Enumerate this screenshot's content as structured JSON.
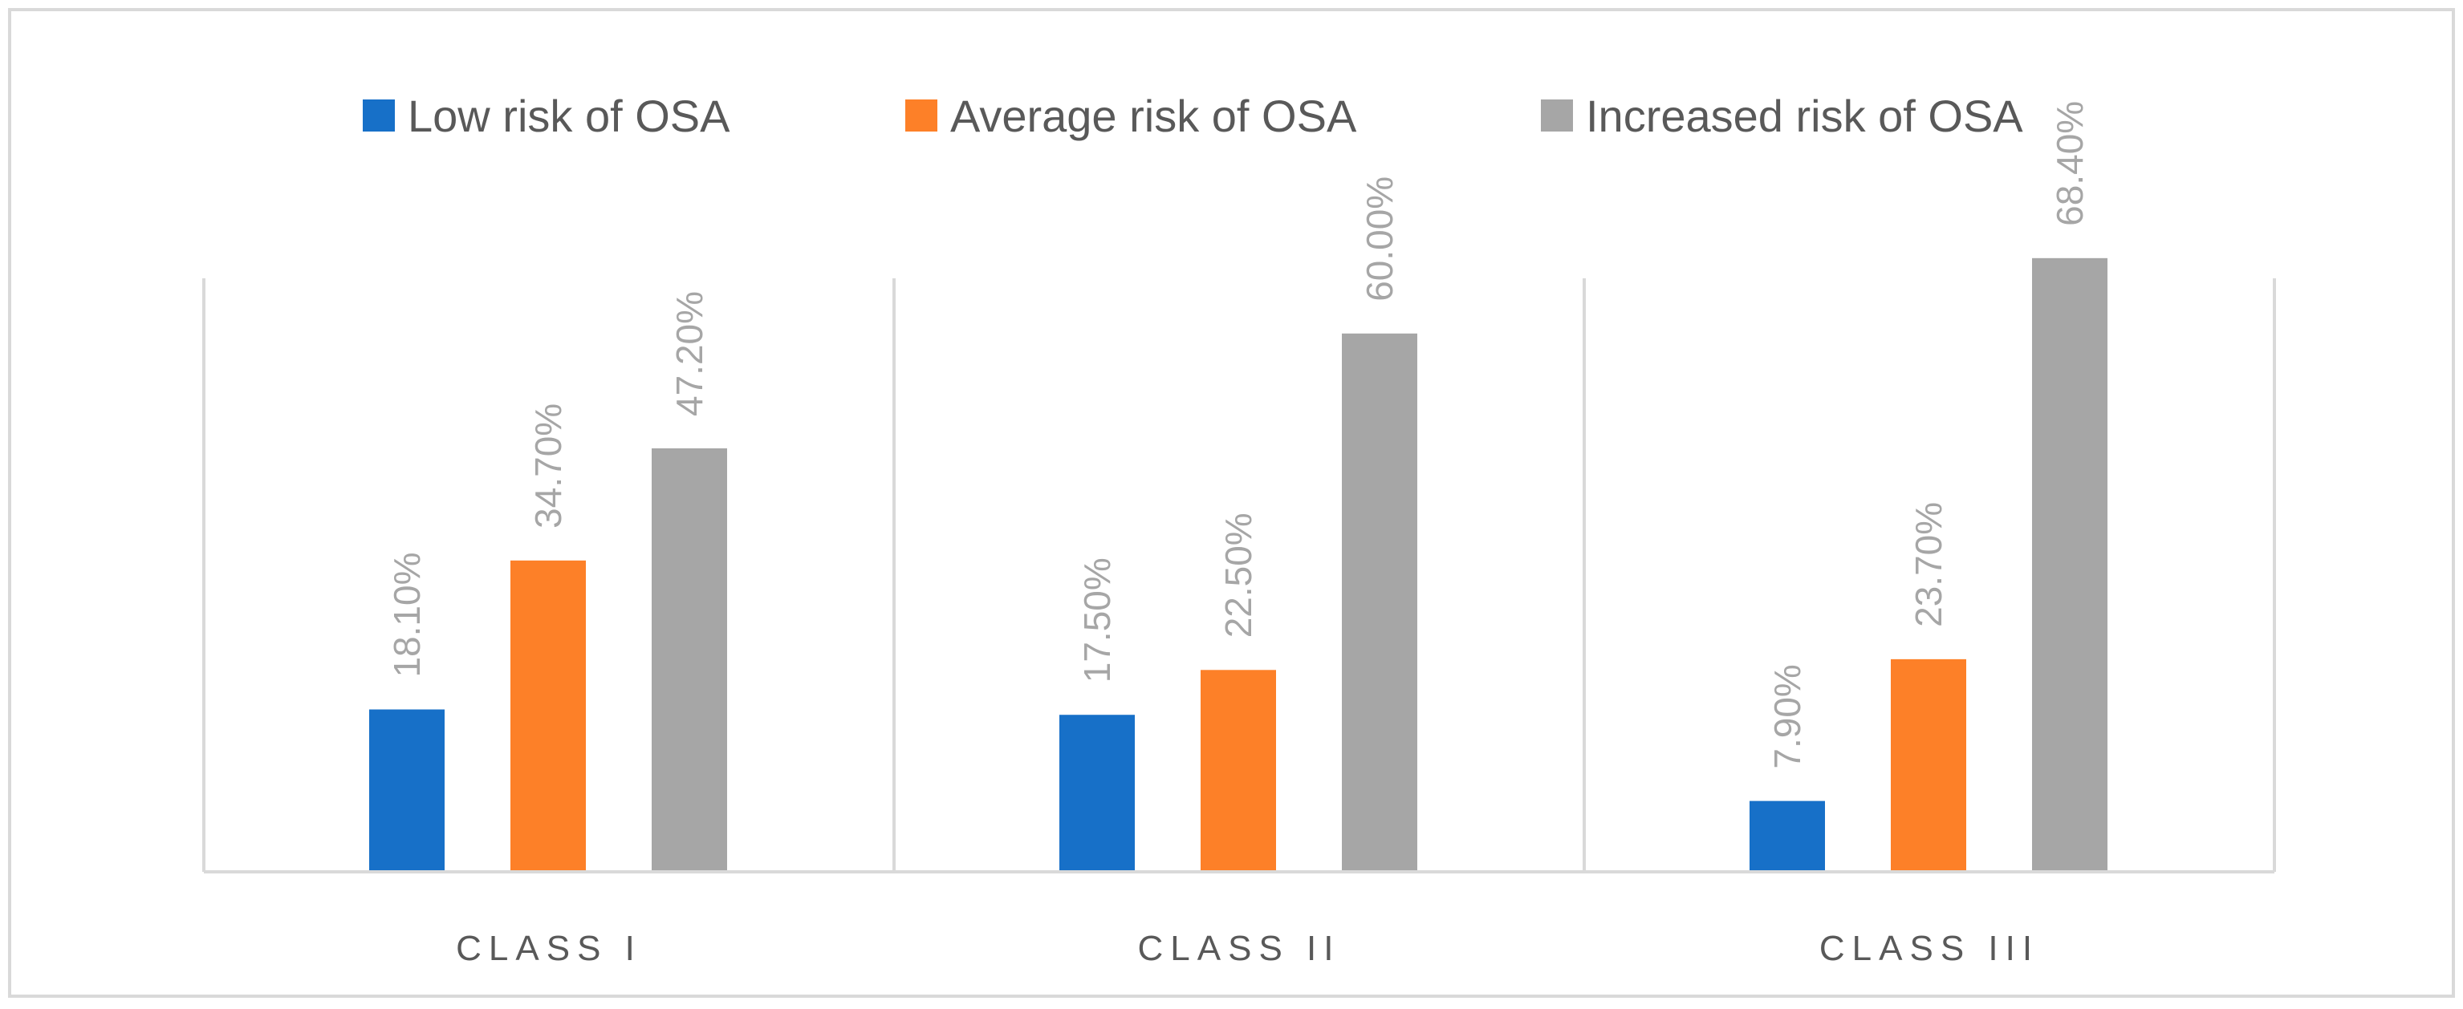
{
  "chart_data": {
    "type": "bar",
    "title": "",
    "xlabel": "",
    "ylabel": "",
    "categories": [
      "CLASS I",
      "CLASS II",
      "CLASS III"
    ],
    "series": [
      {
        "name": "Low risk of OSA",
        "color": "#1770c8",
        "values": [
          18.1,
          17.5,
          7.9
        ],
        "labels": [
          "18.10%",
          "17.50%",
          "7.90%"
        ]
      },
      {
        "name": "Average risk of OSA",
        "color": "#fd8028",
        "values": [
          34.7,
          22.5,
          23.7
        ],
        "labels": [
          "34.70%",
          "22.50%",
          "23.70%"
        ]
      },
      {
        "name": "Increased risk of OSA",
        "color": "#a6a6a6",
        "values": [
          47.2,
          60.0,
          68.4
        ],
        "labels": [
          "47.20%",
          "60.00%",
          "68.40%"
        ]
      }
    ],
    "ylim": [
      0,
      75
    ],
    "grid": false,
    "legend_position": "top"
  }
}
